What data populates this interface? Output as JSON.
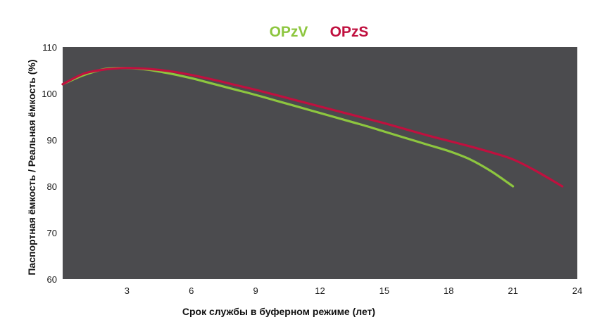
{
  "chart_data": {
    "type": "line",
    "xlabel": "Срок службы в буферном режиме (лет)",
    "ylabel": "Паспортная ёмкость / Реальная ёмкость (%)",
    "xlim": [
      0,
      24
    ],
    "ylim": [
      60,
      110
    ],
    "xticks": [
      3,
      6,
      9,
      12,
      15,
      18,
      21,
      24
    ],
    "yticks": [
      60,
      70,
      80,
      90,
      100,
      110
    ],
    "grid": false,
    "legend": "top-center",
    "background": "#4b4b4e",
    "series": [
      {
        "name": "OPzV",
        "color": "#8dc63f",
        "x": [
          0,
          1,
          2,
          3,
          4,
          5,
          6,
          7,
          8,
          9,
          10,
          11,
          12,
          13,
          14,
          15,
          16,
          17,
          18,
          19,
          20,
          21
        ],
        "y": [
          102,
          104,
          105.3,
          105.5,
          105.1,
          104.3,
          103.3,
          102.1,
          100.9,
          99.7,
          98.4,
          97.1,
          95.8,
          94.5,
          93.2,
          91.8,
          90.4,
          89.0,
          87.6,
          85.8,
          83.2,
          80
        ]
      },
      {
        "name": "OPzS",
        "color": "#c0103f",
        "x": [
          0,
          1,
          2,
          3,
          4,
          5,
          6,
          7,
          8,
          9,
          10,
          11,
          12,
          13,
          14,
          15,
          16,
          17,
          18,
          19,
          20,
          21,
          22,
          23.3
        ],
        "y": [
          102,
          104.3,
          105.2,
          105.5,
          105.3,
          104.8,
          104.0,
          103.0,
          101.9,
          100.8,
          99.6,
          98.4,
          97.2,
          96.0,
          94.8,
          93.6,
          92.3,
          91.0,
          89.8,
          88.6,
          87.3,
          85.8,
          83.5,
          80
        ]
      }
    ]
  }
}
